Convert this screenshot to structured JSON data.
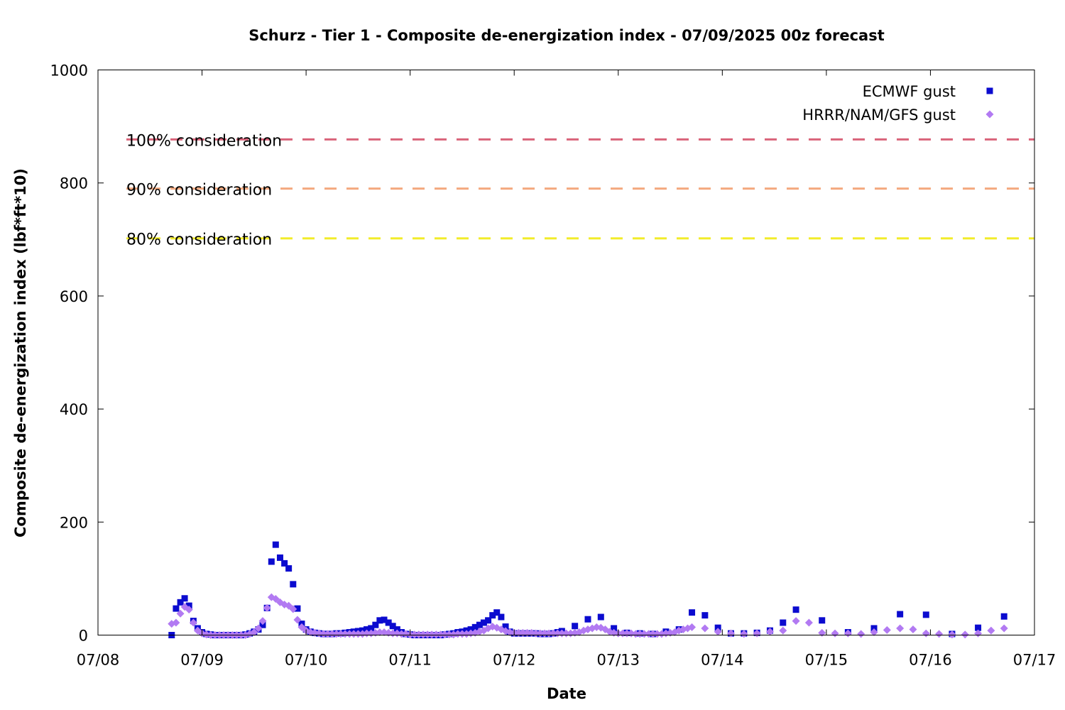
{
  "chart_data": {
    "type": "scatter",
    "title": "Schurz - Tier 1 - Composite de-energization index - 07/09/2025 00z forecast",
    "xlabel": "Date",
    "ylabel": "Composite de-energization index (lbf*ft*10)",
    "ylim": [
      0,
      1000
    ],
    "xlim": [
      0,
      9
    ],
    "x_tick_labels": [
      "07/08",
      "07/09",
      "07/10",
      "07/11",
      "07/12",
      "07/13",
      "07/14",
      "07/15",
      "07/16",
      "07/17"
    ],
    "y_ticks": [
      0,
      200,
      400,
      600,
      800,
      1000
    ],
    "grid": false,
    "legend_position": "top-right",
    "thresholds": [
      {
        "label": "100% consideration",
        "value": 877,
        "color": "#d9637a"
      },
      {
        "label": "90% consideration",
        "value": 790,
        "color": "#f4a97f"
      },
      {
        "label": "80% consideration",
        "value": 702,
        "color": "#f2ec2b"
      }
    ],
    "series": [
      {
        "name": "ECMWF gust",
        "color": "#0b0bcf",
        "marker": "square",
        "points": [
          [
            0.708,
            0
          ],
          [
            0.75,
            47
          ],
          [
            0.792,
            58
          ],
          [
            0.833,
            65
          ],
          [
            0.875,
            52
          ],
          [
            0.917,
            25
          ],
          [
            0.958,
            12
          ],
          [
            1.0,
            5
          ],
          [
            1.042,
            2
          ],
          [
            1.083,
            1
          ],
          [
            1.125,
            0
          ],
          [
            1.167,
            0
          ],
          [
            1.208,
            0
          ],
          [
            1.25,
            0
          ],
          [
            1.292,
            0
          ],
          [
            1.333,
            0
          ],
          [
            1.375,
            0
          ],
          [
            1.417,
            1
          ],
          [
            1.458,
            3
          ],
          [
            1.5,
            6
          ],
          [
            1.542,
            10
          ],
          [
            1.583,
            18
          ],
          [
            1.625,
            48
          ],
          [
            1.667,
            130
          ],
          [
            1.708,
            160
          ],
          [
            1.75,
            137
          ],
          [
            1.792,
            127
          ],
          [
            1.833,
            118
          ],
          [
            1.875,
            90
          ],
          [
            1.917,
            47
          ],
          [
            1.958,
            20
          ],
          [
            2.0,
            10
          ],
          [
            2.042,
            6
          ],
          [
            2.083,
            4
          ],
          [
            2.125,
            3
          ],
          [
            2.167,
            2
          ],
          [
            2.208,
            2
          ],
          [
            2.25,
            2
          ],
          [
            2.292,
            3
          ],
          [
            2.333,
            3
          ],
          [
            2.375,
            4
          ],
          [
            2.417,
            5
          ],
          [
            2.458,
            6
          ],
          [
            2.5,
            7
          ],
          [
            2.542,
            8
          ],
          [
            2.583,
            10
          ],
          [
            2.625,
            12
          ],
          [
            2.667,
            18
          ],
          [
            2.708,
            26
          ],
          [
            2.75,
            27
          ],
          [
            2.792,
            22
          ],
          [
            2.833,
            16
          ],
          [
            2.875,
            10
          ],
          [
            2.917,
            5
          ],
          [
            2.958,
            2
          ],
          [
            3.0,
            1
          ],
          [
            3.042,
            0
          ],
          [
            3.083,
            0
          ],
          [
            3.125,
            0
          ],
          [
            3.167,
            0
          ],
          [
            3.208,
            0
          ],
          [
            3.25,
            0
          ],
          [
            3.292,
            0
          ],
          [
            3.333,
            1
          ],
          [
            3.375,
            2
          ],
          [
            3.417,
            3
          ],
          [
            3.458,
            5
          ],
          [
            3.5,
            6
          ],
          [
            3.542,
            8
          ],
          [
            3.583,
            10
          ],
          [
            3.625,
            14
          ],
          [
            3.667,
            18
          ],
          [
            3.708,
            22
          ],
          [
            3.75,
            26
          ],
          [
            3.792,
            35
          ],
          [
            3.833,
            40
          ],
          [
            3.875,
            32
          ],
          [
            3.917,
            15
          ],
          [
            3.958,
            6
          ],
          [
            4.0,
            3
          ],
          [
            4.042,
            3
          ],
          [
            4.083,
            3
          ],
          [
            4.125,
            3
          ],
          [
            4.167,
            3
          ],
          [
            4.208,
            3
          ],
          [
            4.25,
            2
          ],
          [
            4.292,
            2
          ],
          [
            4.333,
            2
          ],
          [
            4.375,
            3
          ],
          [
            4.417,
            5
          ],
          [
            4.458,
            7
          ],
          [
            4.583,
            16
          ],
          [
            4.708,
            28
          ],
          [
            4.833,
            32
          ],
          [
            4.958,
            12
          ],
          [
            5.083,
            4
          ],
          [
            5.208,
            3
          ],
          [
            5.333,
            2
          ],
          [
            5.458,
            6
          ],
          [
            5.583,
            10
          ],
          [
            5.708,
            40
          ],
          [
            5.833,
            35
          ],
          [
            5.958,
            13
          ],
          [
            6.083,
            3
          ],
          [
            6.208,
            3
          ],
          [
            6.333,
            4
          ],
          [
            6.458,
            8
          ],
          [
            6.583,
            22
          ],
          [
            6.708,
            45
          ],
          [
            6.958,
            26
          ],
          [
            7.208,
            5
          ],
          [
            7.458,
            12
          ],
          [
            7.708,
            37
          ],
          [
            7.958,
            36
          ],
          [
            8.208,
            2
          ],
          [
            8.458,
            13
          ],
          [
            8.708,
            33
          ]
        ]
      },
      {
        "name": "HRRR/NAM/GFS gust",
        "color": "#b27af2",
        "marker": "diamond",
        "points": [
          [
            0.708,
            20
          ],
          [
            0.75,
            22
          ],
          [
            0.792,
            38
          ],
          [
            0.833,
            50
          ],
          [
            0.875,
            45
          ],
          [
            0.917,
            22
          ],
          [
            0.958,
            8
          ],
          [
            1.0,
            3
          ],
          [
            1.042,
            1
          ],
          [
            1.083,
            0
          ],
          [
            1.125,
            0
          ],
          [
            1.167,
            0
          ],
          [
            1.208,
            0
          ],
          [
            1.25,
            0
          ],
          [
            1.292,
            0
          ],
          [
            1.333,
            0
          ],
          [
            1.375,
            0
          ],
          [
            1.417,
            0
          ],
          [
            1.458,
            2
          ],
          [
            1.5,
            5
          ],
          [
            1.542,
            12
          ],
          [
            1.583,
            25
          ],
          [
            1.625,
            48
          ],
          [
            1.667,
            67
          ],
          [
            1.708,
            64
          ],
          [
            1.75,
            58
          ],
          [
            1.792,
            54
          ],
          [
            1.833,
            52
          ],
          [
            1.875,
            46
          ],
          [
            1.917,
            27
          ],
          [
            1.958,
            14
          ],
          [
            2.0,
            8
          ],
          [
            2.042,
            5
          ],
          [
            2.083,
            4
          ],
          [
            2.125,
            3
          ],
          [
            2.167,
            2
          ],
          [
            2.208,
            2
          ],
          [
            2.25,
            2
          ],
          [
            2.292,
            2
          ],
          [
            2.333,
            2
          ],
          [
            2.375,
            2
          ],
          [
            2.417,
            2
          ],
          [
            2.458,
            2
          ],
          [
            2.5,
            2
          ],
          [
            2.542,
            2
          ],
          [
            2.583,
            3
          ],
          [
            2.625,
            3
          ],
          [
            2.667,
            4
          ],
          [
            2.708,
            5
          ],
          [
            2.75,
            5
          ],
          [
            2.792,
            4
          ],
          [
            2.833,
            3
          ],
          [
            2.875,
            3
          ],
          [
            2.917,
            2
          ],
          [
            2.958,
            2
          ],
          [
            3.0,
            1
          ],
          [
            3.042,
            1
          ],
          [
            3.083,
            1
          ],
          [
            3.125,
            1
          ],
          [
            3.167,
            1
          ],
          [
            3.208,
            1
          ],
          [
            3.25,
            1
          ],
          [
            3.292,
            1
          ],
          [
            3.333,
            1
          ],
          [
            3.375,
            1
          ],
          [
            3.417,
            1
          ],
          [
            3.458,
            2
          ],
          [
            3.5,
            2
          ],
          [
            3.542,
            2
          ],
          [
            3.583,
            3
          ],
          [
            3.625,
            4
          ],
          [
            3.667,
            6
          ],
          [
            3.708,
            8
          ],
          [
            3.75,
            12
          ],
          [
            3.792,
            15
          ],
          [
            3.833,
            13
          ],
          [
            3.875,
            10
          ],
          [
            3.917,
            7
          ],
          [
            3.958,
            5
          ],
          [
            4.0,
            4
          ],
          [
            4.042,
            4
          ],
          [
            4.083,
            4
          ],
          [
            4.125,
            4
          ],
          [
            4.167,
            4
          ],
          [
            4.208,
            3
          ],
          [
            4.25,
            3
          ],
          [
            4.292,
            3
          ],
          [
            4.333,
            3
          ],
          [
            4.375,
            3
          ],
          [
            4.417,
            3
          ],
          [
            4.458,
            3
          ],
          [
            4.5,
            3
          ],
          [
            4.542,
            3
          ],
          [
            4.583,
            4
          ],
          [
            4.625,
            5
          ],
          [
            4.667,
            8
          ],
          [
            4.708,
            10
          ],
          [
            4.75,
            12
          ],
          [
            4.792,
            14
          ],
          [
            4.833,
            13
          ],
          [
            4.875,
            10
          ],
          [
            4.917,
            6
          ],
          [
            4.958,
            4
          ],
          [
            5.0,
            3
          ],
          [
            5.042,
            3
          ],
          [
            5.083,
            3
          ],
          [
            5.125,
            3
          ],
          [
            5.167,
            2
          ],
          [
            5.208,
            2
          ],
          [
            5.25,
            2
          ],
          [
            5.292,
            2
          ],
          [
            5.333,
            2
          ],
          [
            5.375,
            2
          ],
          [
            5.417,
            2
          ],
          [
            5.458,
            3
          ],
          [
            5.5,
            4
          ],
          [
            5.542,
            5
          ],
          [
            5.583,
            8
          ],
          [
            5.625,
            10
          ],
          [
            5.667,
            12
          ],
          [
            5.708,
            14
          ],
          [
            5.833,
            12
          ],
          [
            5.958,
            6
          ],
          [
            6.083,
            3
          ],
          [
            6.208,
            2
          ],
          [
            6.333,
            3
          ],
          [
            6.458,
            6
          ],
          [
            6.583,
            8
          ],
          [
            6.708,
            25
          ],
          [
            6.833,
            22
          ],
          [
            6.958,
            4
          ],
          [
            7.083,
            3
          ],
          [
            7.208,
            3
          ],
          [
            7.333,
            2
          ],
          [
            7.458,
            5
          ],
          [
            7.583,
            9
          ],
          [
            7.708,
            12
          ],
          [
            7.833,
            10
          ],
          [
            7.958,
            3
          ],
          [
            8.083,
            2
          ],
          [
            8.208,
            1
          ],
          [
            8.333,
            1
          ],
          [
            8.458,
            3
          ],
          [
            8.583,
            8
          ],
          [
            8.708,
            12
          ]
        ]
      }
    ]
  }
}
